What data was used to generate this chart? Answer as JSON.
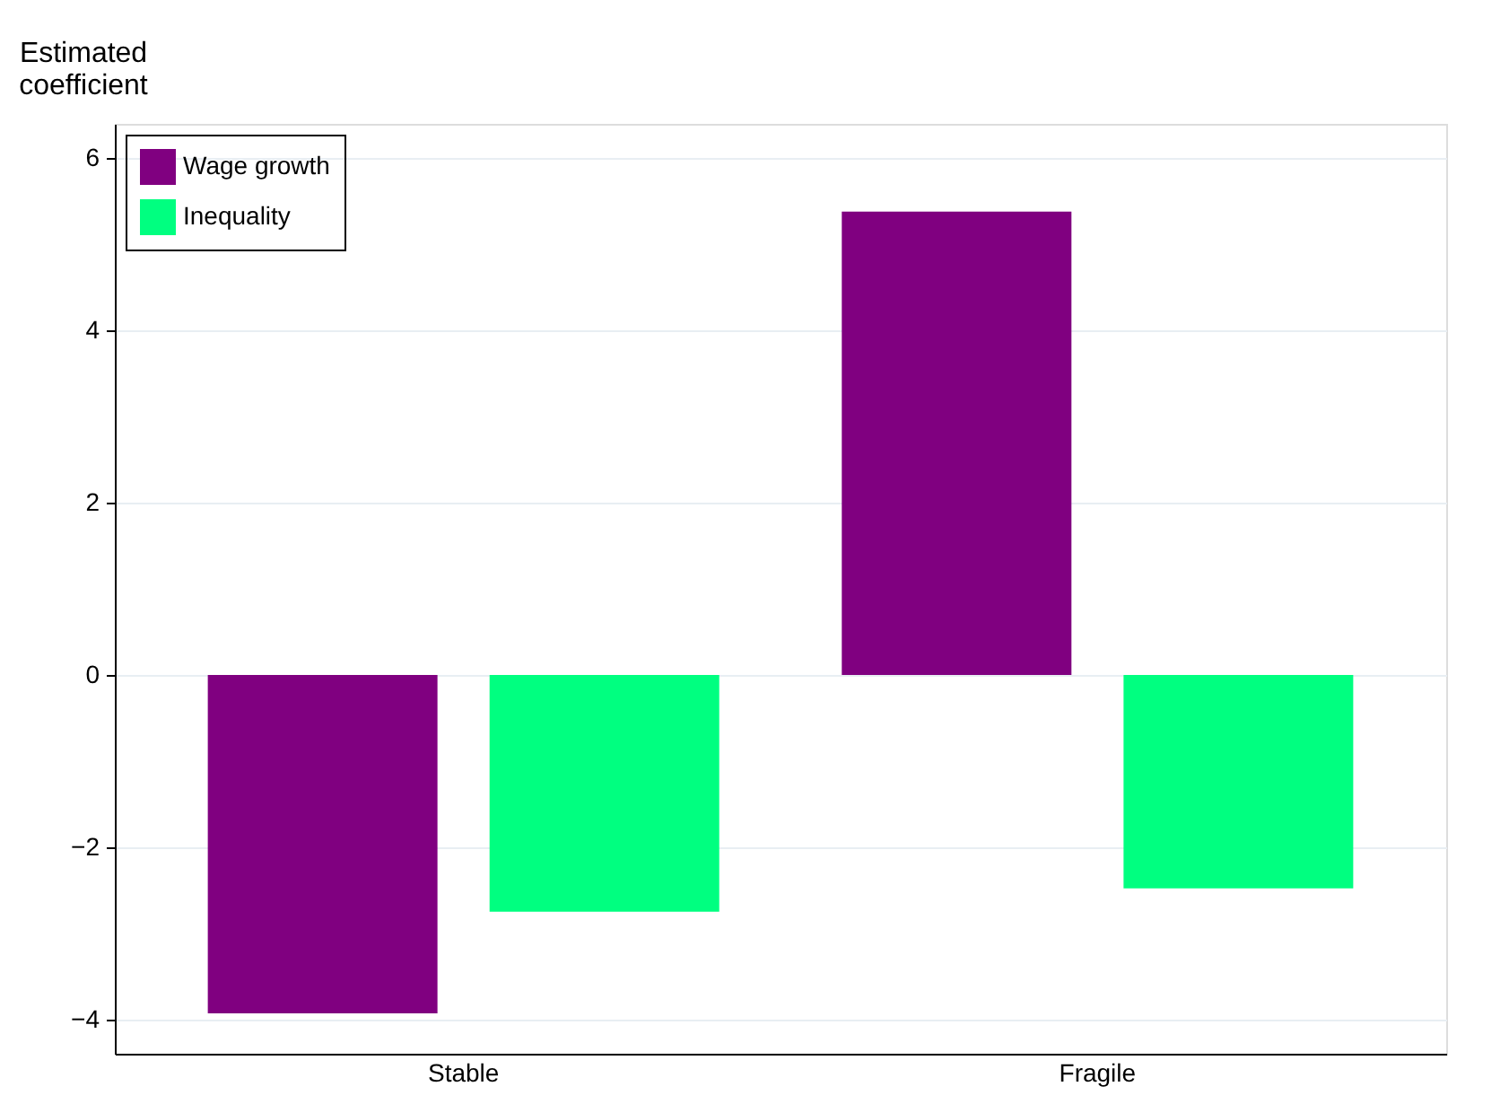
{
  "chart_data": {
    "type": "bar",
    "ylabel": "Estimated coefficient",
    "categories": [
      "Stable",
      "Fragile"
    ],
    "series": [
      {
        "name": "Wage growth",
        "color": "#800080",
        "values": [
          -3.93,
          5.38
        ]
      },
      {
        "name": "Inequality",
        "color": "#00ff80",
        "values": [
          -2.75,
          -2.48
        ]
      }
    ],
    "ylim": [
      -4.4,
      6.4
    ],
    "yticks": [
      -4,
      -2,
      0,
      2,
      4,
      6
    ],
    "grid": "y",
    "legend": "top left"
  }
}
